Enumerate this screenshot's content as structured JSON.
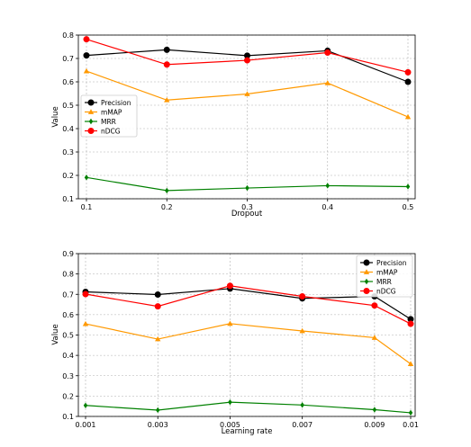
{
  "chart_data": [
    {
      "type": "line",
      "xlabel": "Dropout",
      "ylabel": "Value",
      "x": [
        0.1,
        0.2,
        0.3,
        0.4,
        0.5
      ],
      "xticklabels": [
        "0.1",
        "0.2",
        "0.3",
        "0.4",
        "0.5"
      ],
      "ylim": [
        0.1,
        0.8
      ],
      "yticks": [
        0.1,
        0.2,
        0.3,
        0.4,
        0.5,
        0.6,
        0.7,
        0.8
      ],
      "yticklabels": [
        "0.1",
        "0.2",
        "0.3",
        "0.4",
        "0.5",
        "0.6",
        "0.7",
        "0.8"
      ],
      "grid": true,
      "legend_position": "center-left",
      "series": [
        {
          "name": "Precision",
          "color": "#000000",
          "marker": "circle",
          "values": [
            0.713,
            0.737,
            0.712,
            0.733,
            0.6
          ]
        },
        {
          "name": "mMAP",
          "color": "#ff9900",
          "marker": "triangle",
          "values": [
            0.646,
            0.522,
            0.548,
            0.595,
            0.45
          ]
        },
        {
          "name": "MRR",
          "color": "#008000",
          "marker": "diamond",
          "values": [
            0.191,
            0.135,
            0.146,
            0.156,
            0.152
          ]
        },
        {
          "name": "nDCG",
          "color": "#ff0000",
          "marker": "circle",
          "values": [
            0.782,
            0.674,
            0.692,
            0.725,
            0.641
          ]
        }
      ]
    },
    {
      "type": "line",
      "xlabel": "Learning rate",
      "ylabel": "Value",
      "x": [
        0.001,
        0.003,
        0.005,
        0.007,
        0.009,
        0.01
      ],
      "xticklabels": [
        "0.001",
        "0.003",
        "0.005",
        "0.007",
        "0.009",
        "0.01"
      ],
      "ylim": [
        0.1,
        0.9
      ],
      "yticks": [
        0.1,
        0.2,
        0.3,
        0.4,
        0.5,
        0.6,
        0.7,
        0.8,
        0.9
      ],
      "yticklabels": [
        "0.1",
        "0.2",
        "0.3",
        "0.4",
        "0.5",
        "0.6",
        "0.7",
        "0.8",
        "0.9"
      ],
      "grid": true,
      "legend_position": "top-right",
      "series": [
        {
          "name": "Precision",
          "color": "#000000",
          "marker": "circle",
          "values": [
            0.712,
            0.699,
            0.728,
            0.68,
            0.69,
            0.578
          ]
        },
        {
          "name": "mMAP",
          "color": "#ff9900",
          "marker": "triangle",
          "values": [
            0.555,
            0.48,
            0.556,
            0.52,
            0.487,
            0.358
          ]
        },
        {
          "name": "MRR",
          "color": "#008000",
          "marker": "diamond",
          "values": [
            0.154,
            0.131,
            0.17,
            0.156,
            0.133,
            0.118
          ]
        },
        {
          "name": "nDCG",
          "color": "#ff0000",
          "marker": "circle",
          "values": [
            0.701,
            0.641,
            0.742,
            0.69,
            0.645,
            0.555
          ]
        }
      ]
    }
  ]
}
